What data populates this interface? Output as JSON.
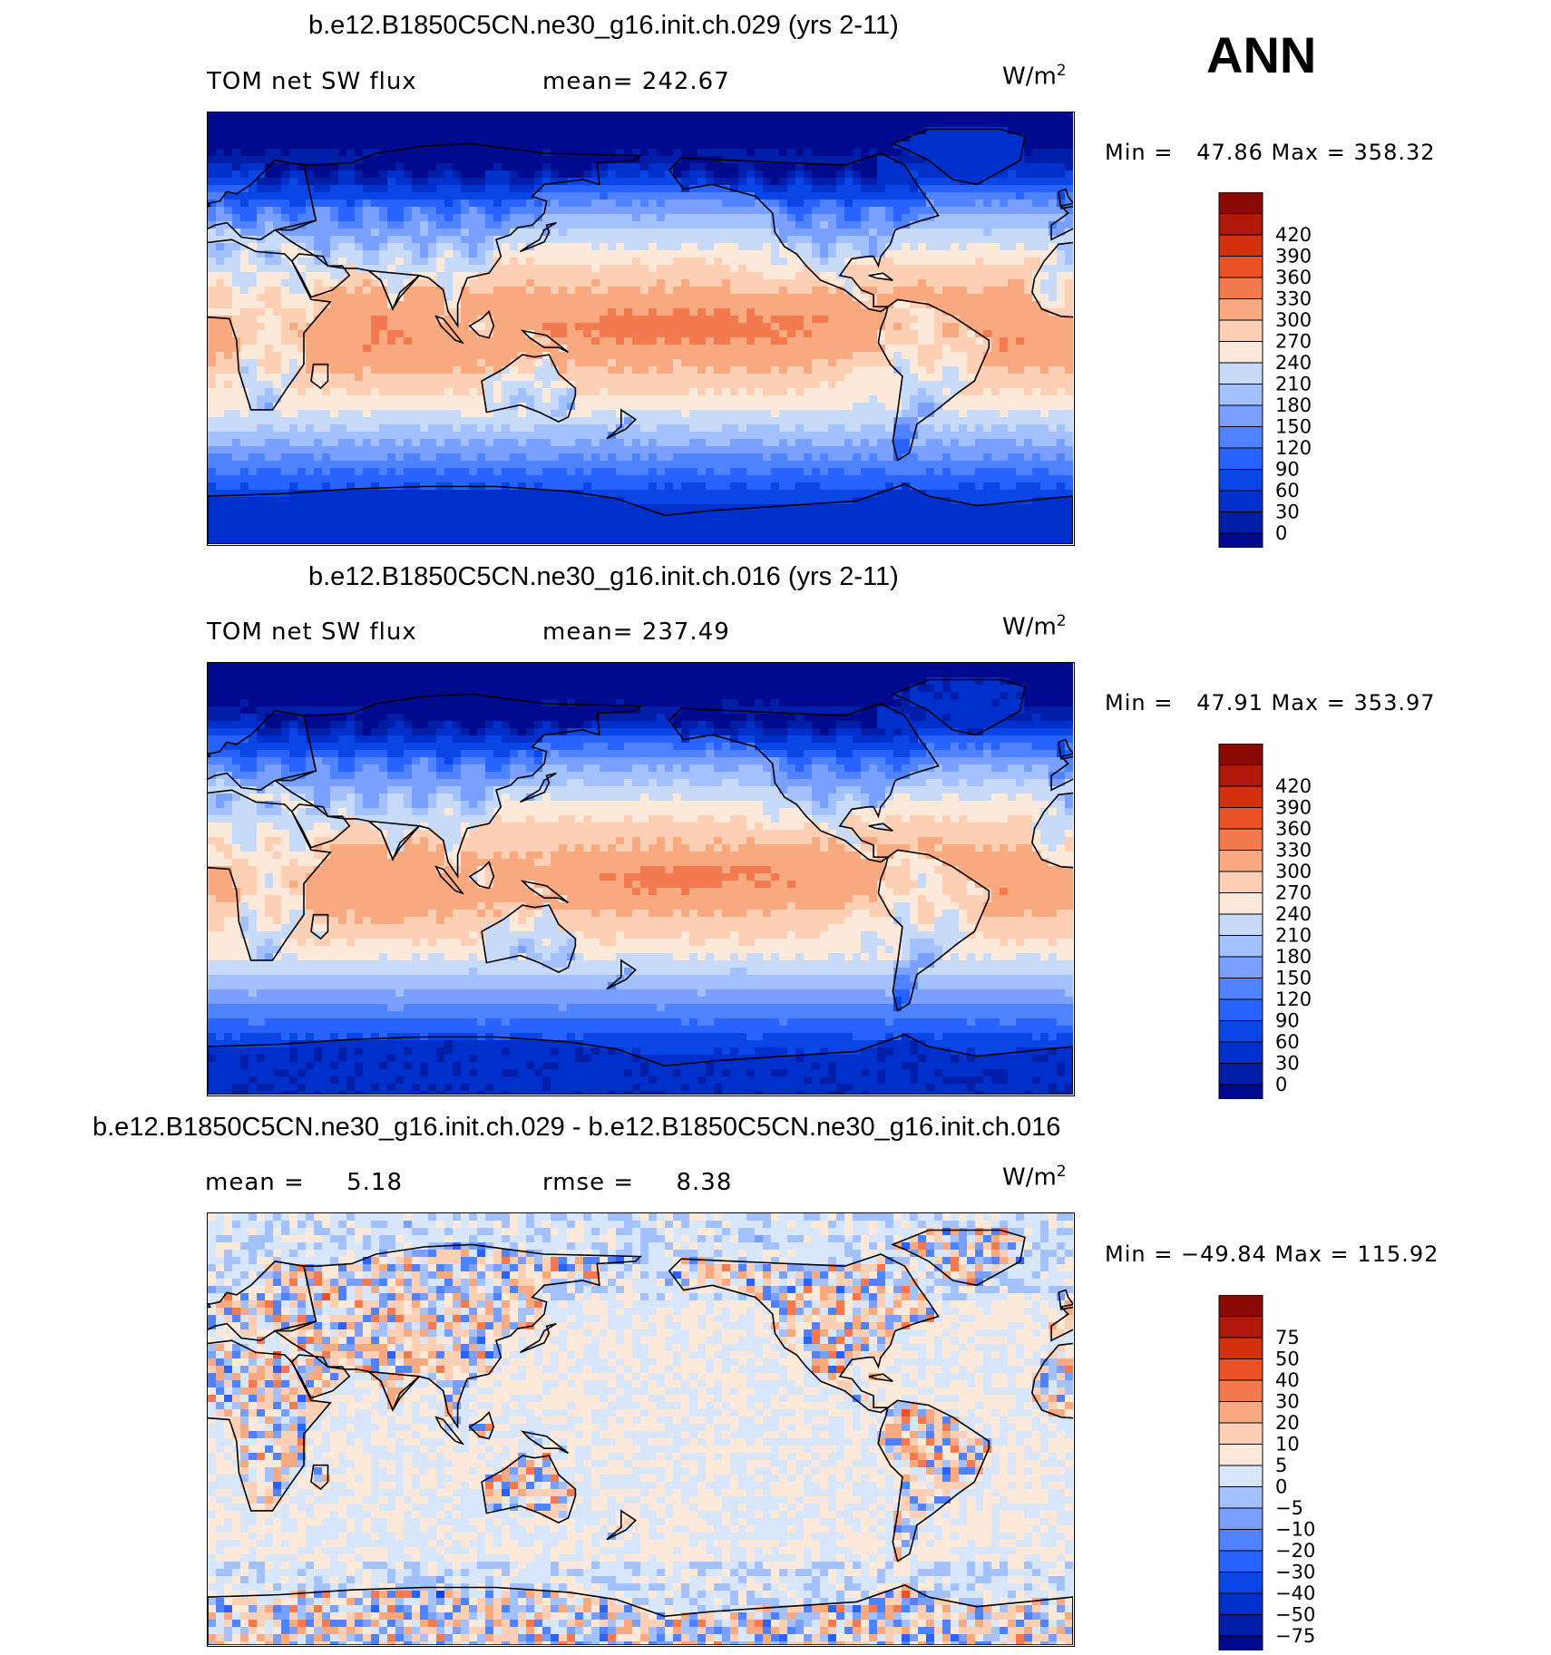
{
  "season": "ANN",
  "units": "W/m",
  "units_sup": "2",
  "panels": [
    {
      "title": "b.e12.B1850C5CN.ne30_g16.init.ch.029 (yrs 2-11)",
      "left_label": "TOM net SW flux",
      "right_label": "mean= 242.67",
      "minmax": "Min =   47.86 Max = 358.32",
      "palette": [
        "#000a8c",
        "#001ea8",
        "#0030cc",
        "#0a46e6",
        "#2862ff",
        "#4f82ff",
        "#7aa0ff",
        "#a3c0ff",
        "#c7daf7",
        "#fde9d9",
        "#fdcfb4",
        "#f9a97f",
        "#f37a4e",
        "#ec5125",
        "#d3300f",
        "#b0190a",
        "#8a0a05"
      ],
      "levels": [
        "0",
        "30",
        "60",
        "90",
        "120",
        "150",
        "180",
        "210",
        "240",
        "270",
        "300",
        "330",
        "360",
        "390",
        "420"
      ],
      "map": {
        "type": "absolute",
        "variant": 1
      }
    },
    {
      "title": "b.e12.B1850C5CN.ne30_g16.init.ch.016 (yrs 2-11)",
      "left_label": "TOM net SW flux",
      "right_label": "mean= 237.49",
      "minmax": "Min =   47.91 Max = 353.97",
      "palette": [
        "#000a8c",
        "#001ea8",
        "#0030cc",
        "#0a46e6",
        "#2862ff",
        "#4f82ff",
        "#7aa0ff",
        "#a3c0ff",
        "#c7daf7",
        "#fde9d9",
        "#fdcfb4",
        "#f9a97f",
        "#f37a4e",
        "#ec5125",
        "#d3300f",
        "#b0190a",
        "#8a0a05"
      ],
      "levels": [
        "0",
        "30",
        "60",
        "90",
        "120",
        "150",
        "180",
        "210",
        "240",
        "270",
        "300",
        "330",
        "360",
        "390",
        "420"
      ],
      "map": {
        "type": "absolute",
        "variant": 2
      }
    },
    {
      "title": "b.e12.B1850C5CN.ne30_g16.init.ch.029 - b.e12.B1850C5CN.ne30_g16.init.ch.016",
      "left_label": "mean =     5.18",
      "right_label": "rmse =     8.38",
      "minmax": "Min = −49.84 Max = 115.92",
      "palette": [
        "#000a8c",
        "#001ea8",
        "#0030cc",
        "#0a46e6",
        "#2862ff",
        "#4f82ff",
        "#7aa0ff",
        "#a3c0ff",
        "#d7e6fb",
        "#fde9d9",
        "#fdcfb4",
        "#f9a97f",
        "#f37a4e",
        "#ec5125",
        "#d3300f",
        "#b0190a",
        "#8a0a05"
      ],
      "levels": [
        "−75",
        "−50",
        "−40",
        "−30",
        "−20",
        "−10",
        "−5",
        "0",
        "5",
        "10",
        "20",
        "30",
        "40",
        "50",
        "75"
      ],
      "map": {
        "type": "difference",
        "variant": 3
      }
    }
  ]
}
